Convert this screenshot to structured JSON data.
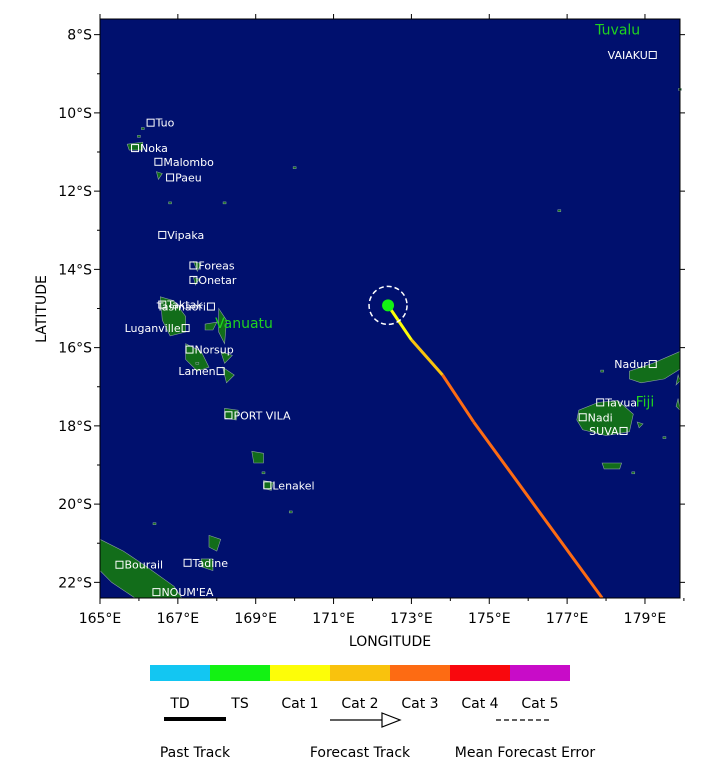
{
  "map": {
    "x_axis_label": "LONGITUDE",
    "y_axis_label": "LATITUDE",
    "lon_ticks": [
      "165°E",
      "167°E",
      "169°E",
      "171°E",
      "173°E",
      "175°E",
      "177°E",
      "179°E"
    ],
    "lat_ticks": [
      "8°S",
      "10°S",
      "12°S",
      "14°S",
      "16°S",
      "18°S",
      "20°S",
      "22°S"
    ],
    "lon_range": [
      165.0,
      179.9
    ],
    "lat_range": [
      -7.6,
      -22.4
    ],
    "ocean_color": "#00106e",
    "land_color": "#126d1a",
    "country_label_color": "#1fd41f"
  },
  "countries": [
    {
      "name": "Tuvalu",
      "lon": 178.3,
      "lat": -8.0
    },
    {
      "name": "Vanuatu",
      "lon": 168.7,
      "lat": -15.5
    },
    {
      "name": "Fiji",
      "lon": 179.0,
      "lat": -17.5
    }
  ],
  "places": [
    {
      "name": "VAIAKU",
      "lon": 179.2,
      "lat": -8.52,
      "label_side": "left"
    },
    {
      "name": "Tuo",
      "lon": 166.3,
      "lat": -10.25,
      "label_side": "right"
    },
    {
      "name": "Noka",
      "lon": 165.9,
      "lat": -10.9,
      "label_side": "right"
    },
    {
      "name": "Malombo",
      "lon": 166.5,
      "lat": -11.25,
      "label_side": "right"
    },
    {
      "name": "Paeu",
      "lon": 166.8,
      "lat": -11.65,
      "label_side": "right"
    },
    {
      "name": "Vipaka",
      "lon": 166.6,
      "lat": -13.12,
      "label_side": "right"
    },
    {
      "name": "Foreas",
      "lon": 167.4,
      "lat": -13.9,
      "label_side": "right"
    },
    {
      "name": "Onetar",
      "lon": 167.4,
      "lat": -14.27,
      "label_side": "right"
    },
    {
      "name": "Taktak",
      "lon": 166.6,
      "lat": -14.9,
      "label_side": "right"
    },
    {
      "name": "Tasmaori",
      "lon": 167.85,
      "lat": -14.95,
      "label_side": "left"
    },
    {
      "name": "Luganville",
      "lon": 167.2,
      "lat": -15.5,
      "label_side": "left"
    },
    {
      "name": "Norsup",
      "lon": 167.3,
      "lat": -16.05,
      "label_side": "right"
    },
    {
      "name": "Lamen",
      "lon": 168.1,
      "lat": -16.6,
      "label_side": "left"
    },
    {
      "name": "PORT VILA",
      "lon": 168.3,
      "lat": -17.73,
      "label_side": "right"
    },
    {
      "name": "Lenakel",
      "lon": 169.3,
      "lat": -19.52,
      "label_side": "right"
    },
    {
      "name": "Tadine",
      "lon": 167.25,
      "lat": -21.5,
      "label_side": "right"
    },
    {
      "name": "Bourail",
      "lon": 165.5,
      "lat": -21.55,
      "label_side": "right"
    },
    {
      "name": "NOUM'EA",
      "lon": 166.45,
      "lat": -22.25,
      "label_side": "right"
    },
    {
      "name": "Nadur",
      "lon": 179.2,
      "lat": -16.42,
      "label_side": "left"
    },
    {
      "name": "Tavua",
      "lon": 177.85,
      "lat": -17.4,
      "label_side": "right"
    },
    {
      "name": "Nadi",
      "lon": 177.4,
      "lat": -17.78,
      "label_side": "right"
    },
    {
      "name": "SUVA",
      "lon": 178.45,
      "lat": -18.13,
      "label_side": "left"
    }
  ],
  "storm": {
    "current_position": {
      "lon": 172.4,
      "lat": -14.92
    },
    "track": [
      {
        "lon": 172.4,
        "lat": -14.92,
        "category": "TS"
      },
      {
        "lon": 173.0,
        "lat": -15.8,
        "category": "Cat 1"
      },
      {
        "lon": 173.8,
        "lat": -16.7,
        "category": "Cat 2"
      },
      {
        "lon": 174.6,
        "lat": -17.9,
        "category": "Cat 3"
      },
      {
        "lon": 177.9,
        "lat": -22.4,
        "category": "Cat 3"
      }
    ]
  },
  "legend": {
    "categories": [
      {
        "label": "TD",
        "color": "#13c6f2"
      },
      {
        "label": "TS",
        "color": "#13f213"
      },
      {
        "label": "Cat 1",
        "color": "#fdfd08"
      },
      {
        "label": "Cat 2",
        "color": "#f9c20d"
      },
      {
        "label": "Cat 3",
        "color": "#fd6b13"
      },
      {
        "label": "Cat 4",
        "color": "#f9080d"
      },
      {
        "label": "Cat 5",
        "color": "#c80cc8"
      }
    ],
    "past_track": "Past Track",
    "forecast_track": "Forecast Track",
    "mean_error": "Mean Forecast Error"
  }
}
